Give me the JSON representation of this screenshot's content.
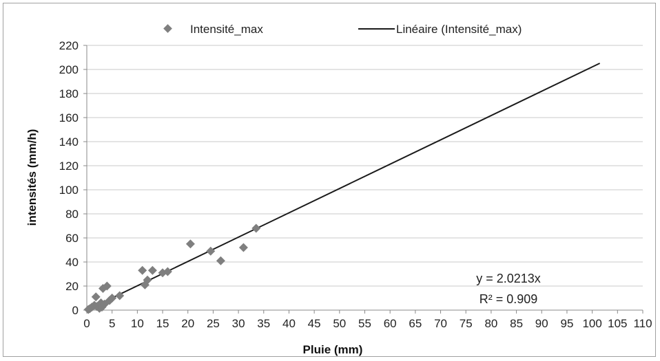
{
  "chart_data": {
    "type": "scatter",
    "xlabel": "Pluie (mm)",
    "ylabel": "intensités (mm/h)",
    "xlim": [
      0,
      110
    ],
    "ylim": [
      0,
      220
    ],
    "x_ticks": [
      0,
      5,
      10,
      15,
      20,
      25,
      30,
      35,
      40,
      45,
      50,
      55,
      60,
      65,
      70,
      75,
      80,
      85,
      90,
      95,
      100,
      105,
      110
    ],
    "y_ticks": [
      0,
      20,
      40,
      60,
      80,
      100,
      120,
      140,
      160,
      180,
      200,
      220
    ],
    "grid": "horizontal",
    "legend_position": "top",
    "series": [
      {
        "name": "Intensité_max",
        "marker": "diamond",
        "color": "#7f7f7f",
        "points": [
          [
            0.3,
            0.5
          ],
          [
            0.6,
            1.2
          ],
          [
            1.0,
            2.5
          ],
          [
            1.5,
            4
          ],
          [
            1.8,
            11
          ],
          [
            2.0,
            3
          ],
          [
            2.5,
            1.5
          ],
          [
            2.8,
            6
          ],
          [
            3.0,
            2.5
          ],
          [
            3.2,
            18
          ],
          [
            3.5,
            5
          ],
          [
            4.0,
            20
          ],
          [
            4.5,
            8
          ],
          [
            5.0,
            10
          ],
          [
            6.5,
            12
          ],
          [
            11.0,
            33
          ],
          [
            11.5,
            21
          ],
          [
            12.0,
            25
          ],
          [
            13.0,
            33
          ],
          [
            15.0,
            31
          ],
          [
            16.0,
            32
          ],
          [
            20.5,
            55
          ],
          [
            24.5,
            49
          ],
          [
            26.5,
            41
          ],
          [
            31.0,
            52
          ],
          [
            33.5,
            68
          ]
        ]
      },
      {
        "name": "Linéaire (Intensité_max)",
        "type": "trendline",
        "color": "#1a1a1a",
        "slope": 2.0213,
        "intercept": 0,
        "x_range": [
          0,
          101.5
        ]
      }
    ],
    "annotations": {
      "equation": "y = 2.0213x",
      "r2": "R² = 0.909"
    },
    "colors": {
      "grid": "#c9c9c9",
      "axis": "#888888",
      "marker": "#7f7f7f",
      "trend": "#1a1a1a"
    }
  }
}
